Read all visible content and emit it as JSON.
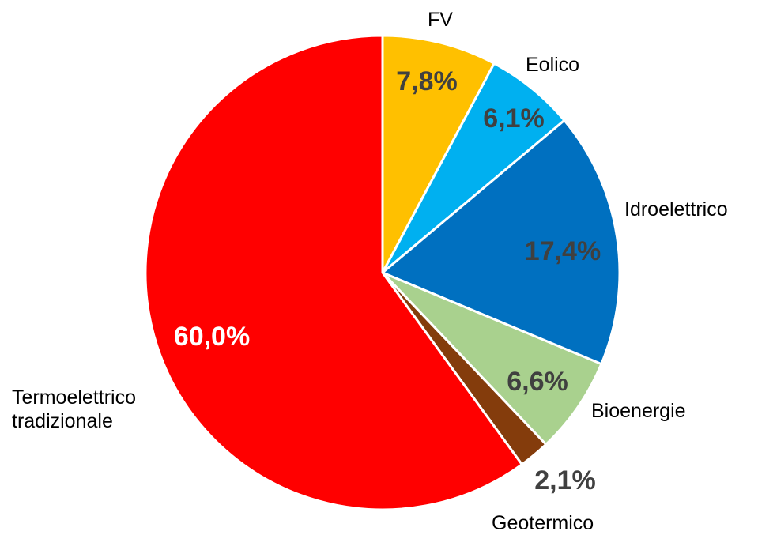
{
  "chart_data": {
    "type": "pie",
    "categories": [
      "FV",
      "Eolico",
      "Idroelettrico",
      "Bioenergie",
      "Geotermico",
      "Termoelettrico tradizionale"
    ],
    "values": [
      7.8,
      6.1,
      17.4,
      6.6,
      2.1,
      60.0
    ],
    "value_labels": [
      "7,8%",
      "6,1%",
      "17,4%",
      "6,6%",
      "2,1%",
      "60,0%"
    ],
    "colors": [
      "#ffc000",
      "#00b0f0",
      "#0070c0",
      "#a9d18e",
      "#843c0c",
      "#ff0000"
    ],
    "value_label_colors": [
      "#404040",
      "#404040",
      "#404040",
      "#404040",
      "#404040",
      "#ffffff"
    ]
  }
}
